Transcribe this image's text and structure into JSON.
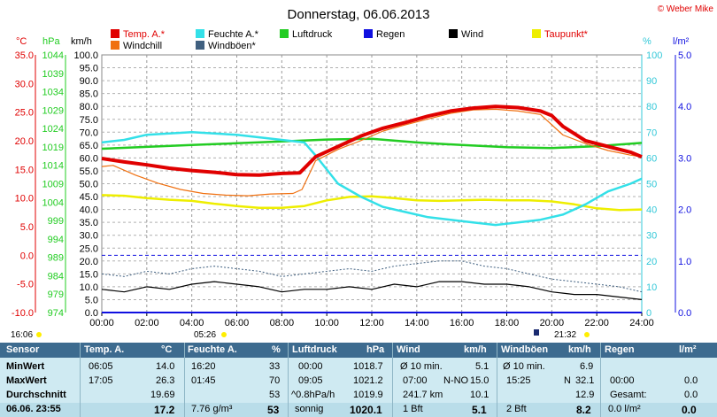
{
  "title": "Donnerstag, 06.06.2013",
  "copyright": "© Weber Mike",
  "legend": [
    {
      "label": "Temp. A.*",
      "color": "#e00000"
    },
    {
      "label": "Feuchte A.*",
      "color": "#33e0e8"
    },
    {
      "label": "Luftdruck",
      "color": "#22cc22"
    },
    {
      "label": "Regen",
      "color": "#1010e0"
    },
    {
      "label": "Wind",
      "color": "#000000"
    },
    {
      "label": "Taupunkt*",
      "color": "#eeee00"
    },
    {
      "label": "Windchill",
      "color": "#f07010"
    },
    {
      "label": "Windböen*",
      "color": "#406080"
    }
  ],
  "axis_units": {
    "temp": "°C",
    "pressure": "hPa",
    "wind": "km/h",
    "humidity": "%",
    "rain": "l/m²"
  },
  "axis_ticks": {
    "temp": [
      "35.0",
      "30.0",
      "25.0",
      "20.0",
      "15.0",
      "10.0",
      "5.0",
      "0.0",
      "-5.0",
      "-10.0"
    ],
    "pressure": [
      "1044",
      "1039",
      "1034",
      "1029",
      "1024",
      "1019",
      "1014",
      "1009",
      "1004",
      "999",
      "994",
      "989",
      "984",
      "979",
      "974"
    ],
    "wind": [
      "100.0",
      "95.0",
      "90.0",
      "85.0",
      "80.0",
      "75.0",
      "70.0",
      "65.0",
      "60.0",
      "55.0",
      "50.0",
      "45.0",
      "40.0",
      "35.0",
      "30.0",
      "25.0",
      "20.0",
      "15.0",
      "10.0",
      "5.0",
      "0.0"
    ],
    "humidity": [
      "100",
      "90",
      "80",
      "70",
      "60",
      "50",
      "40",
      "30",
      "20",
      "10",
      "0"
    ],
    "rain": [
      "5.0",
      "4.0",
      "3.0",
      "2.0",
      "1.0",
      "0.0"
    ],
    "time": [
      "00:00",
      "02:00",
      "04:00",
      "06:00",
      "08:00",
      "10:00",
      "12:00",
      "14:00",
      "16:00",
      "18:00",
      "20:00",
      "22:00",
      "24:00"
    ]
  },
  "markers": {
    "first": "16:06",
    "sunrise": "05:26",
    "sunset": "21:32"
  },
  "chart_data": {
    "type": "line",
    "title": "Donnerstag, 06.06.2013",
    "x_unit": "hours",
    "xlim": [
      0,
      24
    ],
    "series": [
      {
        "name": "Temp. A.*",
        "unit": "°C",
        "axis": "temp",
        "ylim": [
          -10,
          35
        ],
        "x": [
          0,
          1,
          2,
          3,
          4,
          5,
          6,
          7,
          8,
          8.8,
          9.5,
          10.5,
          11.5,
          12.5,
          13.5,
          14.5,
          15.5,
          16.5,
          17.5,
          18.5,
          19.5,
          20,
          20.5,
          21.5,
          22.5,
          23.5,
          24
        ],
        "y": [
          16.9,
          16.3,
          15.8,
          15.2,
          14.8,
          14.5,
          14.1,
          14.0,
          14.3,
          14.4,
          17.2,
          19.0,
          20.8,
          22.2,
          23.2,
          24.3,
          25.2,
          25.7,
          26.0,
          25.8,
          25.2,
          24.4,
          22.5,
          20.0,
          19.0,
          18.0,
          17.2
        ]
      },
      {
        "name": "Windchill",
        "unit": "°C",
        "axis": "temp",
        "ylim": [
          -10,
          35
        ],
        "x": [
          0,
          0.5,
          1.5,
          2.5,
          3.5,
          4.5,
          5.5,
          6.5,
          7.5,
          8.5,
          8.9,
          9.5,
          10.5,
          11.5,
          12.5,
          13.5,
          14.5,
          15.5,
          16.5,
          17.5,
          18.5,
          19.5,
          20.5,
          21.5,
          22.5,
          23.5,
          24
        ],
        "y": [
          15.5,
          15.7,
          14.0,
          12.6,
          11.5,
          10.8,
          10.5,
          10.4,
          10.7,
          10.8,
          11.5,
          16.5,
          18.5,
          20.0,
          21.7,
          22.8,
          23.8,
          24.8,
          25.4,
          25.5,
          25.2,
          24.6,
          21.0,
          19.5,
          18.3,
          17.5,
          17.2
        ]
      },
      {
        "name": "Feuchte A.*",
        "unit": "%",
        "axis": "humidity",
        "ylim": [
          0,
          100
        ],
        "x": [
          0,
          1,
          2,
          3,
          4,
          5,
          6,
          7,
          8,
          9,
          9.5,
          10.5,
          11.5,
          12.5,
          13.5,
          14.5,
          15.5,
          16.5,
          17.5,
          18.5,
          19.5,
          20.5,
          21.5,
          22.5,
          23.5,
          24
        ],
        "y": [
          66,
          67,
          69,
          69.5,
          70,
          69.5,
          69,
          68,
          67,
          66,
          61,
          50,
          45,
          41,
          39,
          37,
          36,
          35,
          34,
          35,
          36,
          38,
          42,
          47,
          50,
          52
        ]
      },
      {
        "name": "Luftdruck",
        "unit": "hPa",
        "axis": "pressure",
        "ylim": [
          974,
          1044
        ],
        "x": [
          0,
          2,
          4,
          6,
          8,
          10,
          12,
          14,
          16,
          18,
          20,
          22,
          24
        ],
        "y": [
          1018.5,
          1019.0,
          1019.5,
          1020.0,
          1020.5,
          1021.0,
          1021.2,
          1020.2,
          1019.5,
          1018.9,
          1018.7,
          1019.2,
          1020.1
        ]
      },
      {
        "name": "Taupunkt*",
        "unit": "°C",
        "axis": "temp",
        "ylim": [
          -10,
          35
        ],
        "x": [
          0,
          1,
          2,
          3,
          4,
          5,
          6,
          7,
          8,
          9,
          10,
          11,
          12,
          13,
          14,
          15,
          16,
          17,
          18,
          19,
          20,
          21,
          22,
          23,
          24
        ],
        "y": [
          10.5,
          10.4,
          10.0,
          9.7,
          9.5,
          9.0,
          8.6,
          8.3,
          8.3,
          8.6,
          9.6,
          10.2,
          10.3,
          10.0,
          9.6,
          9.5,
          9.6,
          9.7,
          9.6,
          9.6,
          9.4,
          8.9,
          8.2,
          7.9,
          8.0
        ]
      },
      {
        "name": "Wind",
        "unit": "km/h",
        "axis": "wind",
        "ylim": [
          0,
          100
        ],
        "x": [
          0,
          1,
          2,
          3,
          4,
          5,
          6,
          7,
          8,
          9,
          10,
          11,
          12,
          13,
          14,
          15,
          16,
          17,
          18,
          19,
          20,
          21,
          22,
          23,
          24
        ],
        "y": [
          9,
          8,
          10,
          9,
          11,
          12,
          11,
          10,
          8,
          9,
          9,
          10,
          9,
          11,
          10,
          12,
          12,
          11,
          11,
          10,
          8,
          7,
          7,
          6,
          5
        ]
      },
      {
        "name": "Windböen*",
        "unit": "km/h",
        "axis": "wind",
        "ylim": [
          0,
          100
        ],
        "x": [
          0,
          1,
          2,
          3,
          4,
          5,
          6,
          7,
          8,
          9,
          10,
          11,
          12,
          13,
          14,
          15,
          16,
          17,
          18,
          19,
          20,
          21,
          22,
          23,
          24
        ],
        "y": [
          15,
          14,
          16,
          15,
          17,
          18,
          17,
          16,
          14,
          15,
          16,
          17,
          16,
          18,
          19,
          20,
          20,
          18,
          17,
          15,
          13,
          12,
          11,
          10,
          8
        ]
      },
      {
        "name": "Regen",
        "unit": "l/m²",
        "axis": "rain",
        "ylim": [
          0,
          5
        ],
        "x": [
          0,
          24
        ],
        "y": [
          0,
          0
        ]
      }
    ]
  },
  "table": {
    "headers": {
      "sensor": "Sensor",
      "temp": "Temp. A.",
      "temp_unit": "°C",
      "hum": "Feuchte A.",
      "hum_unit": "%",
      "press": "Luftdruck",
      "press_unit": "hPa",
      "wind": "Wind",
      "wind_unit": "km/h",
      "gust": "Windböen",
      "gust_unit": "km/h",
      "rain": "Regen",
      "rain_unit": "l/m²"
    },
    "labels": {
      "min": "MinWert",
      "max": "MaxWert",
      "avg": "Durchschnitt",
      "now": "06.06. 23:55"
    },
    "min": {
      "temp_t": "06:05",
      "temp_v": "14.0",
      "hum_t": "16:20",
      "hum_v": "33",
      "press_t": "00:00",
      "press_v": "1018.7",
      "wind_t": "Ø 10 min.",
      "wind_v": "5.1",
      "gust_t": "Ø 10 min.",
      "gust_v": "6.9"
    },
    "max": {
      "temp_t": "17:05",
      "temp_v": "26.3",
      "hum_t": "01:45",
      "hum_v": "70",
      "press_t": "09:05",
      "press_v": "1021.2",
      "wind_t": "07:00",
      "wind_dir": "N-NO",
      "wind_v": "15.0",
      "gust_t": "15:25",
      "gust_dir": "N",
      "gust_v": "32.1",
      "rain_t": "00:00",
      "rain_v": "0.0"
    },
    "avg": {
      "temp_v": "19.69",
      "hum_v": "53",
      "press_t": "^0.8hPa/h",
      "press_v": "1019.9",
      "wind_t": "241.7 km",
      "wind_v": "10.1",
      "gust_v": "12.9",
      "rain_t": "Gesamt:",
      "rain_v": "0.0"
    },
    "now": {
      "temp_v": "17.2",
      "hum_t": "7.76 g/m³",
      "hum_v": "53",
      "press_t": "sonnig",
      "press_v": "1020.1",
      "wind_t": "1 Bft",
      "wind_v": "5.1",
      "gust_t": "2 Bft",
      "gust_v": "8.2",
      "rain_t": "0.0 l/m²",
      "rain_v": "0.0"
    }
  }
}
